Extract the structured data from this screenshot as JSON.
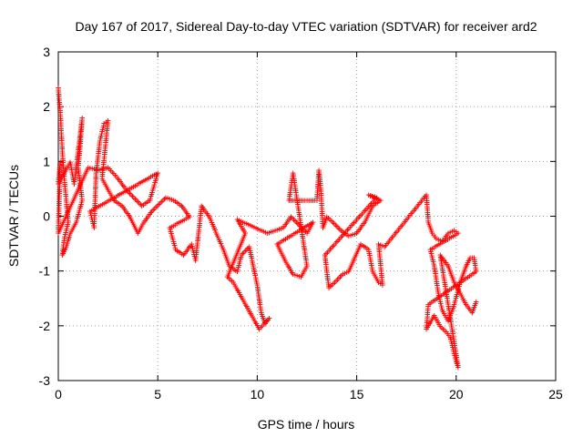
{
  "chart_data": {
    "type": "scatter",
    "title": "Day 167 of 2017, Sidereal Day-to-day VTEC variation (SDTVAR) for receiver ard2",
    "xlabel": "GPS time / hours",
    "ylabel": "SDTVAR / TECUs",
    "xlim": [
      0,
      25
    ],
    "ylim": [
      -3,
      3
    ],
    "xticks": [
      "0",
      "5",
      "10",
      "15",
      "20",
      "25"
    ],
    "yticks": [
      "-3",
      "-2",
      "-1",
      "0",
      "1",
      "2",
      "3"
    ],
    "grid": true,
    "marker": "+",
    "series": [
      {
        "name": "SDTVAR",
        "color": "#ff0000",
        "points": [
          [
            0.0,
            2.35
          ],
          [
            0.1,
            1.9
          ],
          [
            0.2,
            1.2
          ],
          [
            0.3,
            0.7
          ],
          [
            0.4,
            0.3
          ],
          [
            0.5,
            -0.1
          ],
          [
            0.3,
            -0.4
          ],
          [
            0.2,
            -0.7
          ],
          [
            0.4,
            -0.55
          ],
          [
            0.6,
            -0.3
          ],
          [
            0.9,
            -0.1
          ],
          [
            1.2,
            0.3
          ],
          [
            1.0,
            0.9
          ],
          [
            1.1,
            1.3
          ],
          [
            1.2,
            1.8
          ],
          [
            0.8,
            0.6
          ],
          [
            0.6,
            1.0
          ],
          [
            0.0,
            0.6
          ],
          [
            0.1,
            1.0
          ],
          [
            0.0,
            -0.3
          ],
          [
            1.5,
            0.9
          ],
          [
            2.0,
            0.85
          ],
          [
            2.5,
            0.9
          ],
          [
            3.0,
            0.7
          ],
          [
            3.4,
            0.5
          ],
          [
            3.8,
            0.35
          ],
          [
            4.2,
            0.2
          ],
          [
            4.6,
            0.3
          ],
          [
            5.0,
            0.8
          ],
          [
            1.6,
            0.1
          ],
          [
            1.8,
            -0.2
          ],
          [
            1.9,
            0.8
          ],
          [
            2.1,
            1.4
          ],
          [
            2.3,
            1.7
          ],
          [
            2.5,
            1.75
          ],
          [
            2.2,
            0.7
          ],
          [
            2.8,
            0.3
          ],
          [
            3.2,
            0.2
          ],
          [
            3.6,
            0.0
          ],
          [
            4.0,
            -0.3
          ],
          [
            4.3,
            -0.1
          ],
          [
            4.7,
            0.1
          ],
          [
            5.4,
            0.35
          ],
          [
            5.8,
            0.3
          ],
          [
            6.2,
            0.2
          ],
          [
            6.6,
            0.0
          ],
          [
            5.6,
            -0.2
          ],
          [
            5.9,
            -0.6
          ],
          [
            6.3,
            -0.7
          ],
          [
            6.7,
            -0.5
          ],
          [
            6.9,
            -0.8
          ],
          [
            7.2,
            0.2
          ],
          [
            7.6,
            0.0
          ],
          [
            8.0,
            -0.35
          ],
          [
            8.3,
            -0.6
          ],
          [
            8.6,
            -0.9
          ],
          [
            9.0,
            -1.0
          ],
          [
            9.2,
            -0.7
          ],
          [
            9.6,
            -0.55
          ],
          [
            9.8,
            -0.9
          ],
          [
            10.0,
            -1.25
          ],
          [
            10.2,
            -1.75
          ],
          [
            10.4,
            -1.95
          ],
          [
            10.6,
            -1.85
          ],
          [
            10.1,
            -2.05
          ],
          [
            8.8,
            -1.2
          ],
          [
            8.5,
            -1.1
          ],
          [
            9.4,
            -0.3
          ],
          [
            9.0,
            -0.05
          ],
          [
            10.5,
            -0.3
          ],
          [
            10.9,
            -0.25
          ],
          [
            11.3,
            -0.2
          ],
          [
            11.7,
            0.0
          ],
          [
            12.1,
            -0.15
          ],
          [
            12.5,
            -0.3
          ],
          [
            12.8,
            -0.1
          ],
          [
            11.0,
            -0.5
          ],
          [
            11.4,
            -0.8
          ],
          [
            11.8,
            -1.05
          ],
          [
            12.2,
            -1.1
          ],
          [
            12.5,
            -0.9
          ],
          [
            11.8,
            0.8
          ],
          [
            11.6,
            0.3
          ],
          [
            13.0,
            0.3
          ],
          [
            13.1,
            0.85
          ],
          [
            13.2,
            0.5
          ],
          [
            13.3,
            -0.2
          ],
          [
            13.5,
            0.0
          ],
          [
            13.8,
            -0.1
          ],
          [
            14.2,
            -0.25
          ],
          [
            14.6,
            -0.35
          ],
          [
            15.0,
            -0.3
          ],
          [
            15.4,
            -0.1
          ],
          [
            15.8,
            0.2
          ],
          [
            16.2,
            0.3
          ],
          [
            15.6,
            0.4
          ],
          [
            16.0,
            0.35
          ],
          [
            13.4,
            -0.7
          ],
          [
            13.6,
            -1.3
          ],
          [
            13.9,
            -1.2
          ],
          [
            14.3,
            -1.05
          ],
          [
            14.6,
            -1.0
          ],
          [
            15.2,
            -0.5
          ],
          [
            15.6,
            -0.6
          ],
          [
            15.8,
            -1.0
          ],
          [
            16.1,
            -1.2
          ],
          [
            16.3,
            -1.25
          ],
          [
            16.1,
            -0.5
          ],
          [
            16.4,
            -0.55
          ],
          [
            18.5,
            0.4
          ],
          [
            18.6,
            -0.1
          ],
          [
            18.8,
            -0.3
          ],
          [
            19.0,
            -0.4
          ],
          [
            19.3,
            -0.45
          ],
          [
            19.6,
            -0.3
          ],
          [
            19.9,
            -0.25
          ],
          [
            20.1,
            -0.3
          ],
          [
            18.7,
            -0.6
          ],
          [
            18.9,
            -0.9
          ],
          [
            19.1,
            -1.4
          ],
          [
            19.3,
            -1.7
          ],
          [
            19.6,
            -1.9
          ],
          [
            19.9,
            -1.6
          ],
          [
            20.2,
            -1.2
          ],
          [
            20.5,
            -0.9
          ],
          [
            20.7,
            -0.75
          ],
          [
            20.9,
            -0.75
          ],
          [
            21.0,
            -1.0
          ],
          [
            18.6,
            -1.6
          ],
          [
            18.5,
            -2.05
          ],
          [
            18.9,
            -1.8
          ],
          [
            19.2,
            -2.0
          ],
          [
            19.5,
            -2.1
          ],
          [
            19.7,
            -2.2
          ],
          [
            19.9,
            -2.5
          ],
          [
            20.0,
            -2.65
          ],
          [
            20.1,
            -2.75
          ],
          [
            19.2,
            -0.7
          ],
          [
            19.6,
            -0.9
          ],
          [
            19.9,
            -1.2
          ],
          [
            20.2,
            -1.4
          ],
          [
            20.5,
            -1.6
          ],
          [
            20.8,
            -1.75
          ],
          [
            21.0,
            -1.55
          ]
        ]
      }
    ]
  }
}
